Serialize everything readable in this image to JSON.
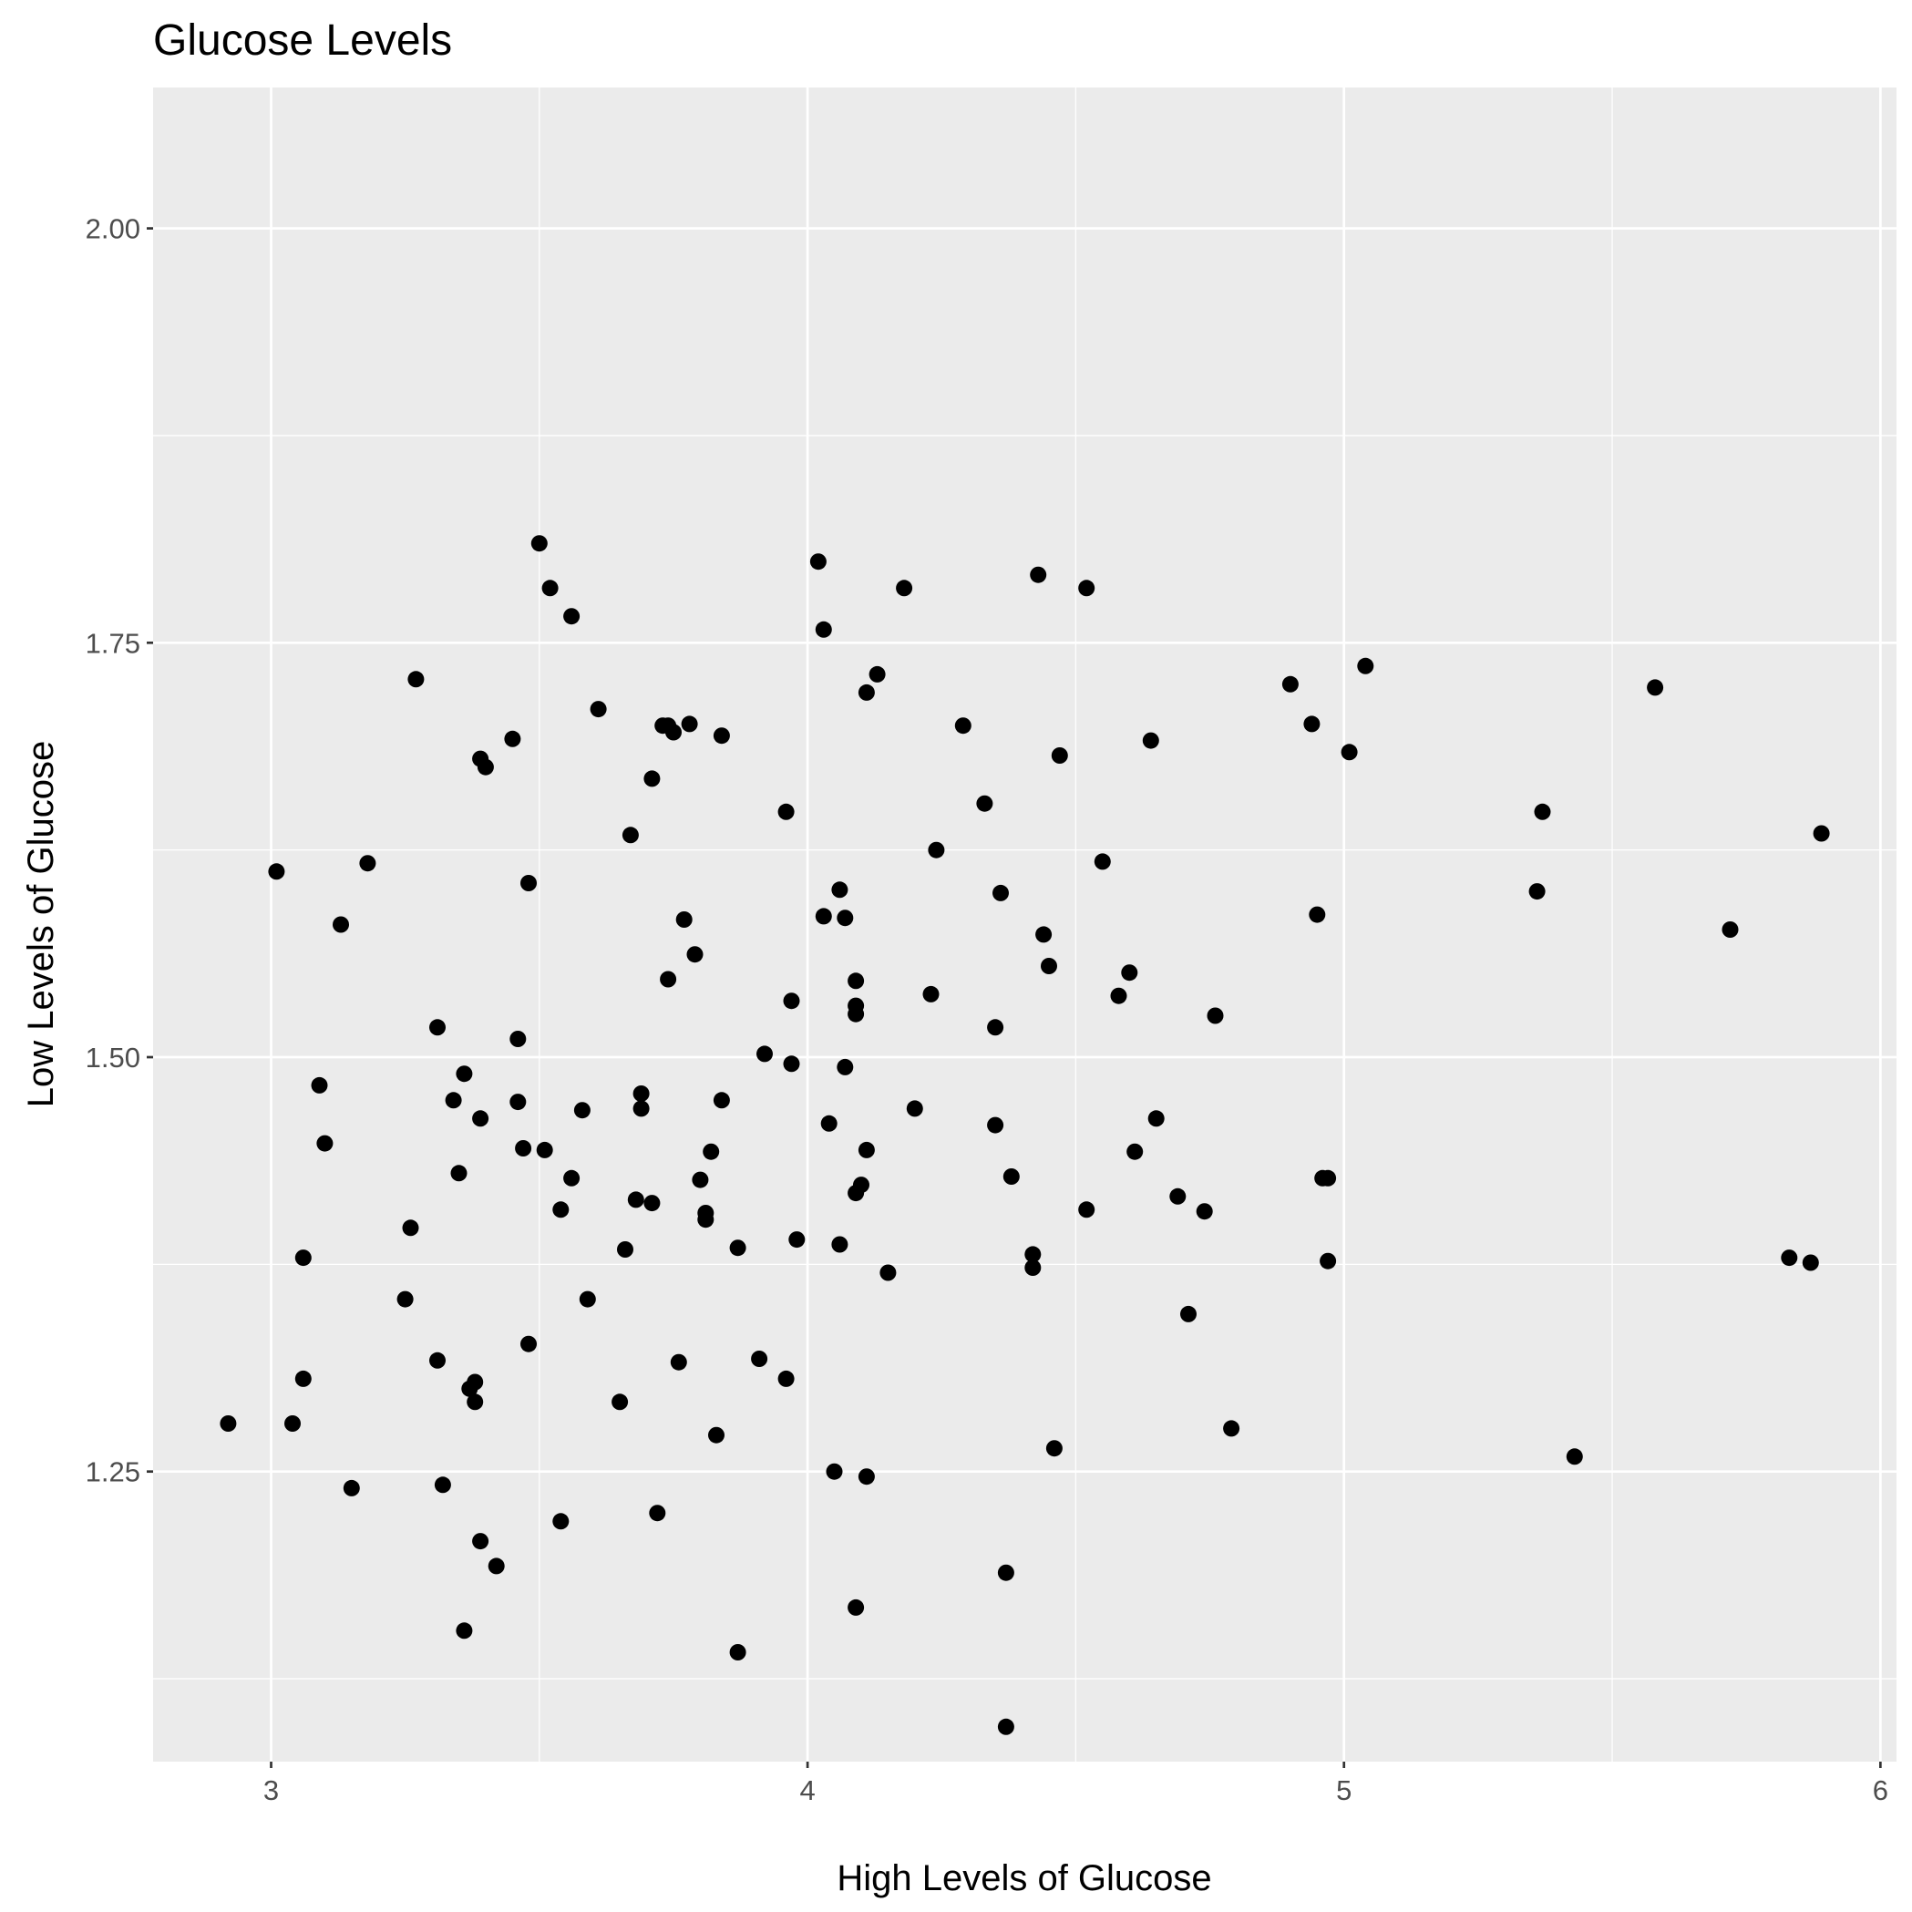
{
  "chart_data": {
    "type": "scatter",
    "title": "Glucose Levels",
    "xlabel": "High Levels of Glucose",
    "ylabel": "Low Levels of Glucose",
    "xlim": [
      2.78,
      6.03
    ],
    "ylim": [
      1.075,
      2.085
    ],
    "x_ticks": [
      3,
      4,
      5,
      6
    ],
    "x_tick_labels": [
      "3",
      "4",
      "5",
      "6"
    ],
    "y_ticks": [
      1.25,
      1.5,
      1.75,
      2.0
    ],
    "y_tick_labels": [
      "1.25",
      "1.50",
      "1.75",
      "2.00"
    ],
    "grid": true,
    "background_color": "#ebebeb",
    "point_color": "#000000",
    "points": [
      [
        2.92,
        1.279
      ],
      [
        3.01,
        1.612
      ],
      [
        3.04,
        1.279
      ],
      [
        3.06,
        1.306
      ],
      [
        3.06,
        1.379
      ],
      [
        3.09,
        1.483
      ],
      [
        3.1,
        1.448
      ],
      [
        3.13,
        1.58
      ],
      [
        3.15,
        1.24
      ],
      [
        3.18,
        1.617
      ],
      [
        3.25,
        1.354
      ],
      [
        3.26,
        1.397
      ],
      [
        3.27,
        1.728
      ],
      [
        3.31,
        1.317
      ],
      [
        3.31,
        1.518
      ],
      [
        3.32,
        1.242
      ],
      [
        3.34,
        1.474
      ],
      [
        3.35,
        1.43
      ],
      [
        3.36,
        1.154
      ],
      [
        3.36,
        1.49
      ],
      [
        3.37,
        1.3
      ],
      [
        3.38,
        1.304
      ],
      [
        3.38,
        1.292
      ],
      [
        3.39,
        1.68
      ],
      [
        3.39,
        1.463
      ],
      [
        3.39,
        1.208
      ],
      [
        3.4,
        1.675
      ],
      [
        3.42,
        1.193
      ],
      [
        3.45,
        1.692
      ],
      [
        3.46,
        1.473
      ],
      [
        3.46,
        1.511
      ],
      [
        3.47,
        1.445
      ],
      [
        3.48,
        1.605
      ],
      [
        3.48,
        1.327
      ],
      [
        3.5,
        1.81
      ],
      [
        3.51,
        1.444
      ],
      [
        3.52,
        1.783
      ],
      [
        3.54,
        1.408
      ],
      [
        3.54,
        1.22
      ],
      [
        3.56,
        1.427
      ],
      [
        3.56,
        1.766
      ],
      [
        3.58,
        1.468
      ],
      [
        3.59,
        1.354
      ],
      [
        3.61,
        1.71
      ],
      [
        3.65,
        1.292
      ],
      [
        3.66,
        1.384
      ],
      [
        3.67,
        1.634
      ],
      [
        3.68,
        1.414
      ],
      [
        3.69,
        1.478
      ],
      [
        3.69,
        1.469
      ],
      [
        3.71,
        1.668
      ],
      [
        3.71,
        1.412
      ],
      [
        3.72,
        1.225
      ],
      [
        3.73,
        1.7
      ],
      [
        3.74,
        1.547
      ],
      [
        3.74,
        1.7
      ],
      [
        3.75,
        1.696
      ],
      [
        3.76,
        1.316
      ],
      [
        3.77,
        1.583
      ],
      [
        3.78,
        1.701
      ],
      [
        3.79,
        1.562
      ],
      [
        3.8,
        1.426
      ],
      [
        3.81,
        1.402
      ],
      [
        3.81,
        1.406
      ],
      [
        3.82,
        1.443
      ],
      [
        3.83,
        1.272
      ],
      [
        3.84,
        1.474
      ],
      [
        3.84,
        1.694
      ],
      [
        3.87,
        1.141
      ],
      [
        3.87,
        1.385
      ],
      [
        3.91,
        1.318
      ],
      [
        3.92,
        1.502
      ],
      [
        3.96,
        1.306
      ],
      [
        3.96,
        1.648
      ],
      [
        3.97,
        1.534
      ],
      [
        3.97,
        1.496
      ],
      [
        3.98,
        1.39
      ],
      [
        4.02,
        1.799
      ],
      [
        4.03,
        1.758
      ],
      [
        4.03,
        1.585
      ],
      [
        4.04,
        1.46
      ],
      [
        4.05,
        1.25
      ],
      [
        4.06,
        1.601
      ],
      [
        4.06,
        1.387
      ],
      [
        4.07,
        1.494
      ],
      [
        4.07,
        1.584
      ],
      [
        4.09,
        1.168
      ],
      [
        4.09,
        1.531
      ],
      [
        4.09,
        1.526
      ],
      [
        4.09,
        1.546
      ],
      [
        4.09,
        1.418
      ],
      [
        4.1,
        1.423
      ],
      [
        4.11,
        1.72
      ],
      [
        4.11,
        1.247
      ],
      [
        4.11,
        1.444
      ],
      [
        4.13,
        1.731
      ],
      [
        4.15,
        1.37
      ],
      [
        4.18,
        1.783
      ],
      [
        4.2,
        1.469
      ],
      [
        4.23,
        1.538
      ],
      [
        4.24,
        1.625
      ],
      [
        4.29,
        1.7
      ],
      [
        4.33,
        1.653
      ],
      [
        4.35,
        1.459
      ],
      [
        4.35,
        1.518
      ],
      [
        4.36,
        1.599
      ],
      [
        4.37,
        1.189
      ],
      [
        4.37,
        1.096
      ],
      [
        4.38,
        1.428
      ],
      [
        4.42,
        1.381
      ],
      [
        4.42,
        1.373
      ],
      [
        4.43,
        1.791
      ],
      [
        4.44,
        1.574
      ],
      [
        4.45,
        1.555
      ],
      [
        4.46,
        1.264
      ],
      [
        4.47,
        1.682
      ],
      [
        4.52,
        1.408
      ],
      [
        4.52,
        1.783
      ],
      [
        4.55,
        1.618
      ],
      [
        4.58,
        1.537
      ],
      [
        4.6,
        1.551
      ],
      [
        4.61,
        1.443
      ],
      [
        4.64,
        1.691
      ],
      [
        4.65,
        1.463
      ],
      [
        4.69,
        1.416
      ],
      [
        4.71,
        1.345
      ],
      [
        4.74,
        1.407
      ],
      [
        4.76,
        1.525
      ],
      [
        4.79,
        1.276
      ],
      [
        4.9,
        1.725
      ],
      [
        4.94,
        1.701
      ],
      [
        4.95,
        1.586
      ],
      [
        4.96,
        1.427
      ],
      [
        4.97,
        1.427
      ],
      [
        4.97,
        1.377
      ],
      [
        5.01,
        1.684
      ],
      [
        5.04,
        1.736
      ],
      [
        5.36,
        1.6
      ],
      [
        5.37,
        1.648
      ],
      [
        5.43,
        1.259
      ],
      [
        5.58,
        1.723
      ],
      [
        5.72,
        1.577
      ],
      [
        5.83,
        1.379
      ],
      [
        5.87,
        1.376
      ],
      [
        5.89,
        1.635
      ]
    ]
  }
}
